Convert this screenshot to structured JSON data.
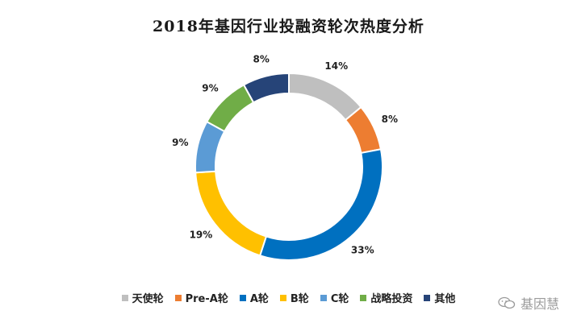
{
  "chart_data": {
    "type": "pie",
    "title": "2018年基因行业投融资轮次热度分析",
    "series": [
      {
        "name": "天使轮",
        "value": 14,
        "label": "14%",
        "color": "#bfbfbf"
      },
      {
        "name": "Pre-A轮",
        "value": 8,
        "label": "8%",
        "color": "#ed7d31"
      },
      {
        "name": "A轮",
        "value": 33,
        "label": "33%",
        "color": "#0070c0"
      },
      {
        "name": "B轮",
        "value": 19,
        "label": "19%",
        "color": "#ffc000"
      },
      {
        "name": "C轮",
        "value": 9,
        "label": "9%",
        "color": "#5b9bd5"
      },
      {
        "name": "战略投资",
        "value": 9,
        "label": "9%",
        "color": "#70ad47"
      },
      {
        "name": "其他",
        "value": 8,
        "label": "8%",
        "color": "#264478"
      }
    ],
    "legend_position": "bottom"
  },
  "watermark": {
    "text": "基因慧",
    "icon": "wechat-icon"
  }
}
